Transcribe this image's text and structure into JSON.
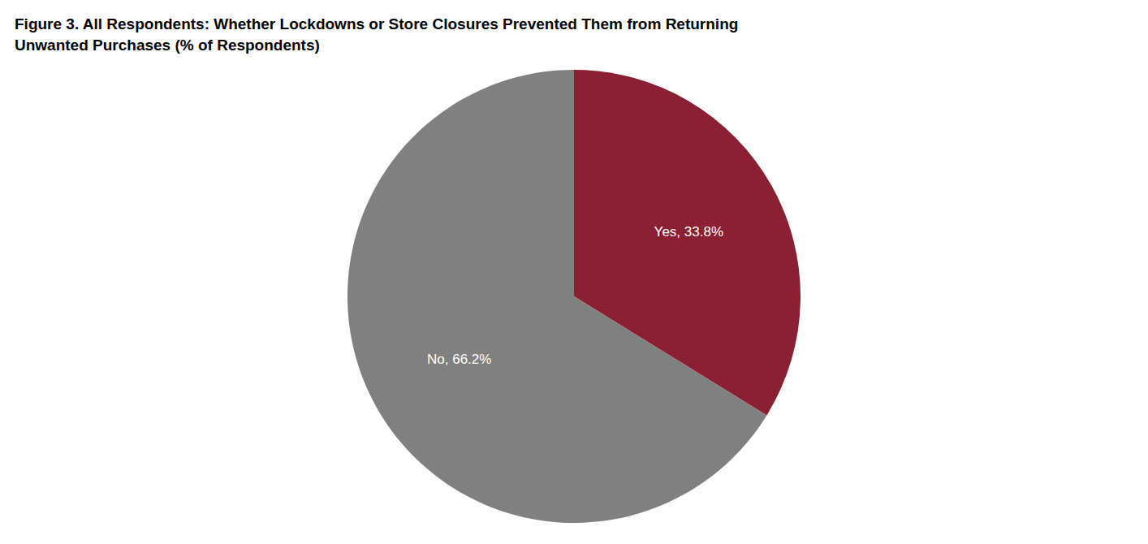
{
  "chart_data": {
    "type": "pie",
    "title": "Figure 3. All Respondents: Whether Lockdowns or Store Closures Prevented Them from Returning",
    "subtitle": "Unwanted Purchases (% of Respondents)",
    "values": [
      33.8,
      66.2
    ],
    "value_labels": [
      "Yes, 33.8%",
      "No, 66.2%"
    ],
    "colors": [
      "#8B2035",
      "#808080"
    ],
    "data_labels": true
  }
}
